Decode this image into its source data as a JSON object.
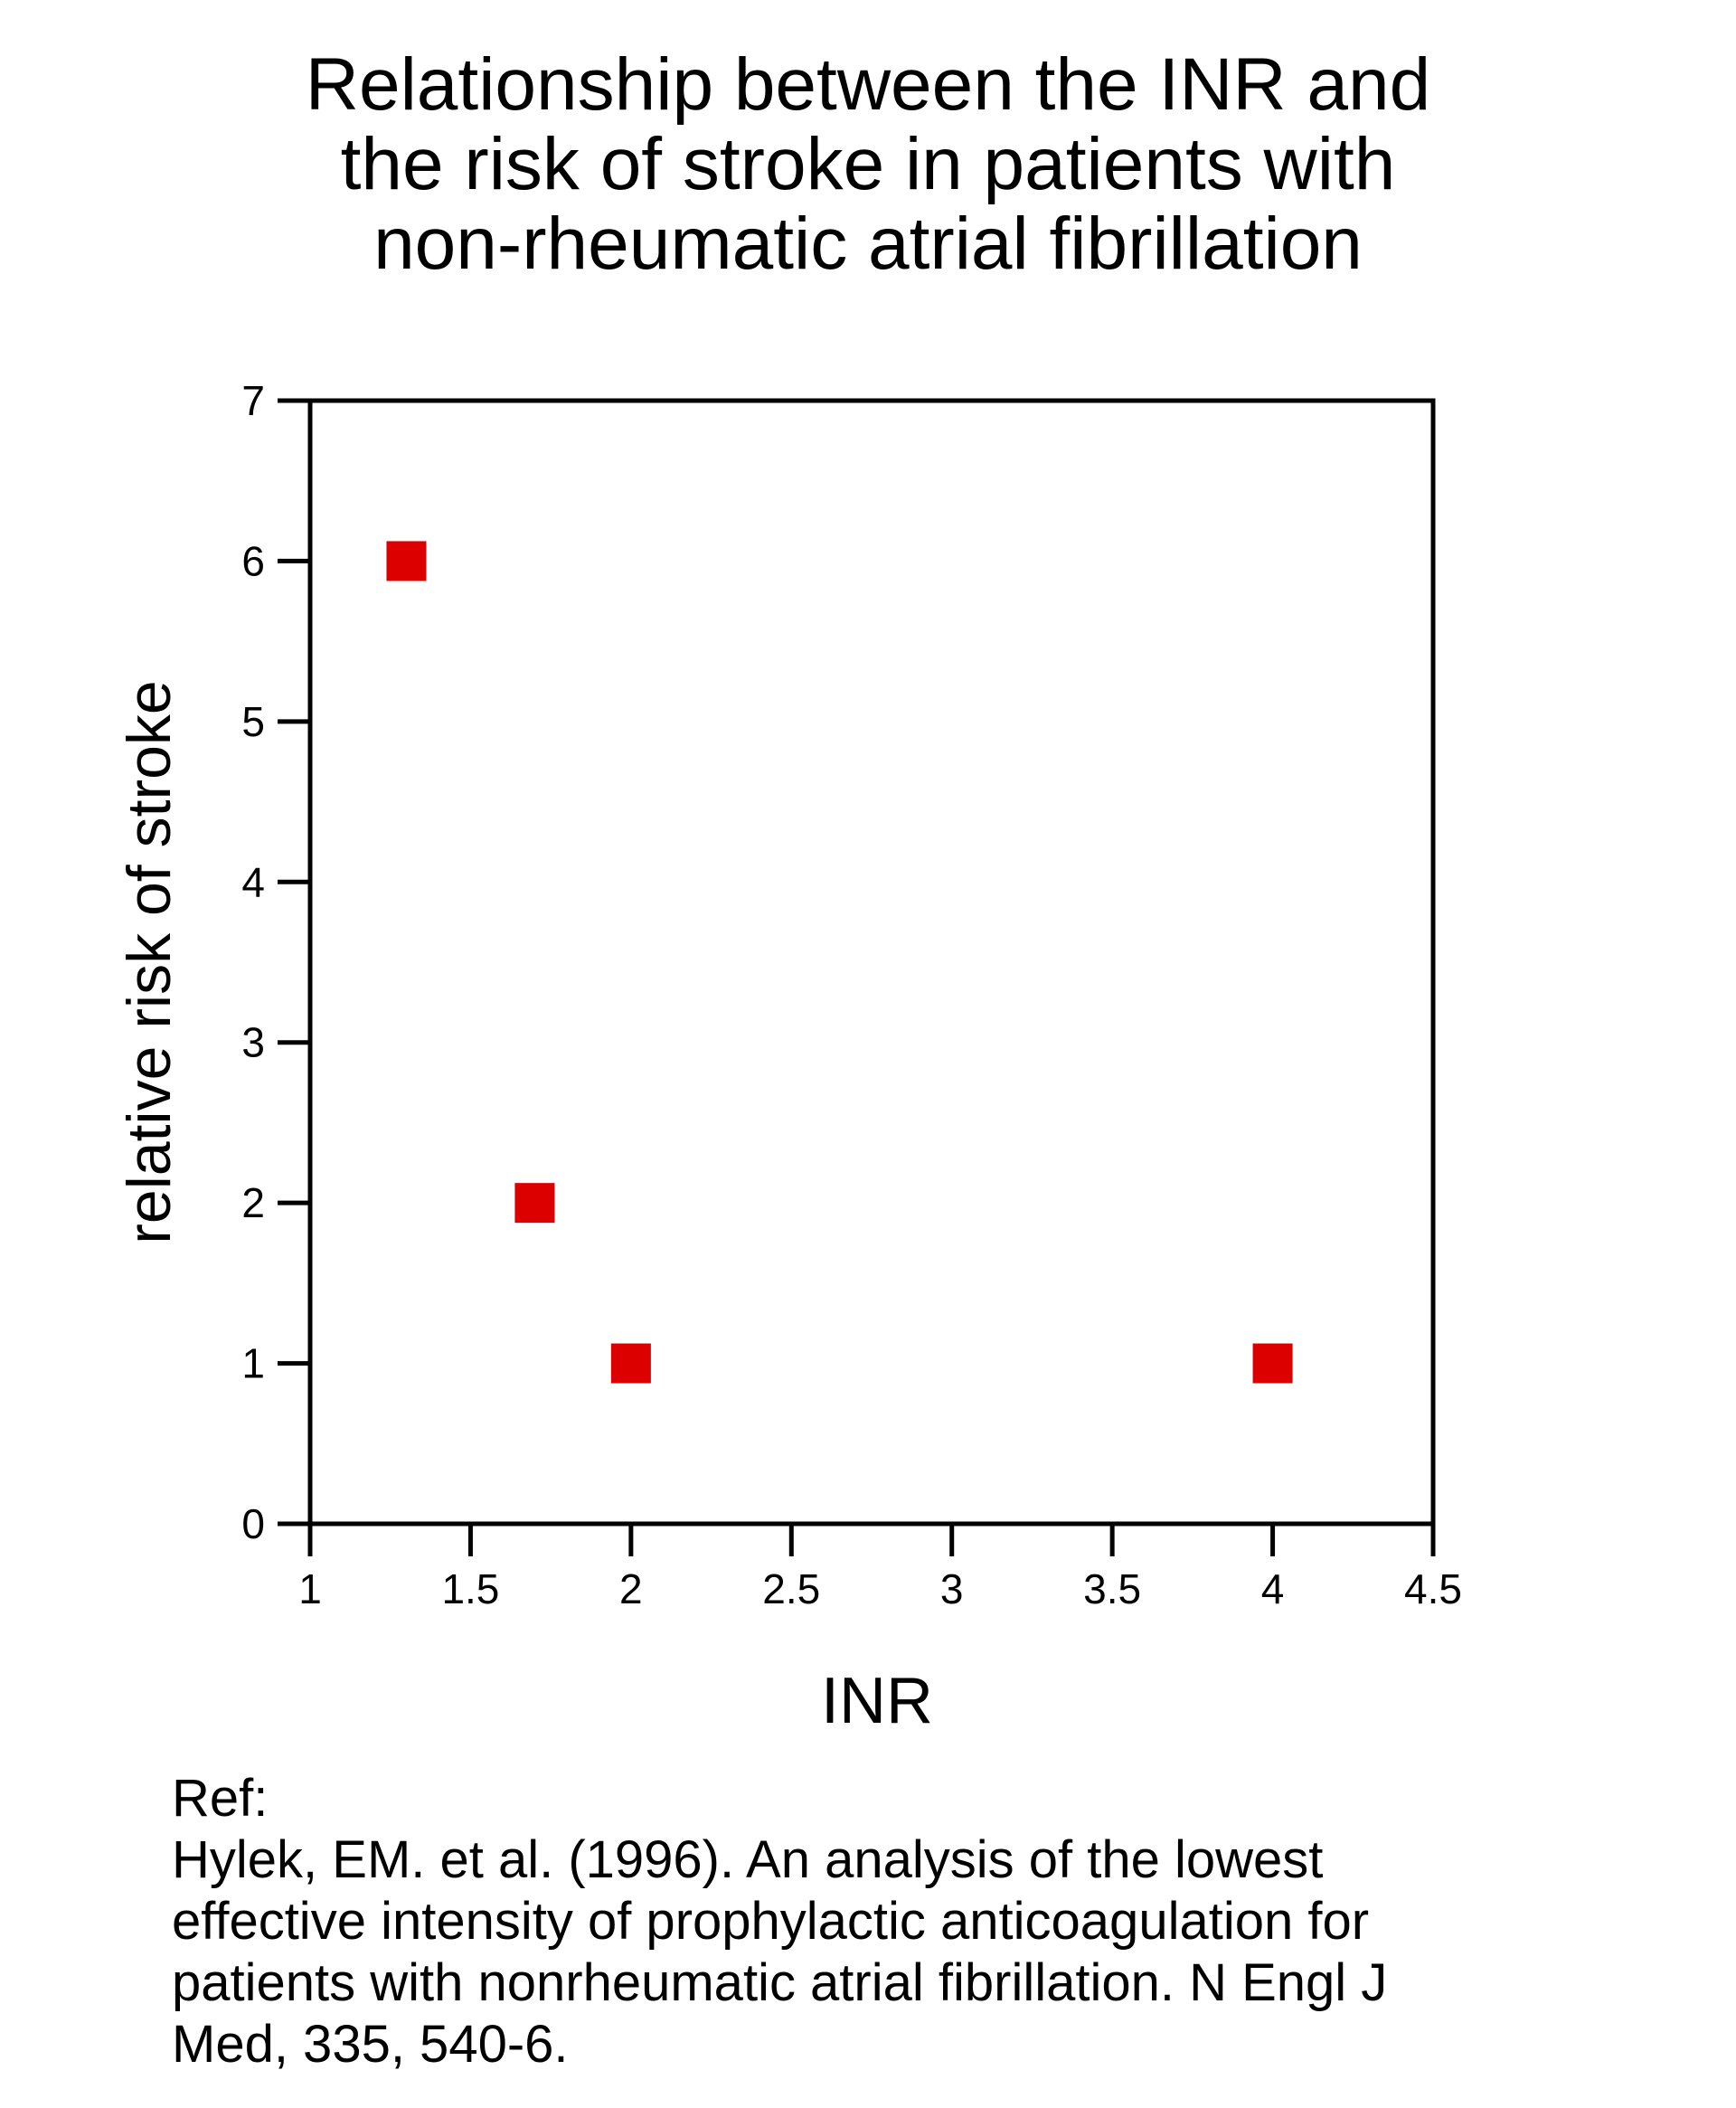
{
  "chart_data": {
    "type": "scatter",
    "title_lines": [
      "Relationship between the INR and",
      "the risk of stroke in patients with",
      "non-rheumatic atrial fibrillation"
    ],
    "xlabel": "INR",
    "ylabel": "relative risk of stroke",
    "xlim": [
      1,
      4.5
    ],
    "ylim": [
      0,
      7
    ],
    "x_ticks": [
      1,
      1.5,
      2,
      2.5,
      3,
      3.5,
      4,
      4.5
    ],
    "x_tick_labels": [
      "1",
      "1.5",
      "2",
      "2.5",
      "3",
      "3.5",
      "4",
      "4.5"
    ],
    "y_ticks": [
      0,
      1,
      2,
      3,
      4,
      5,
      6,
      7
    ],
    "y_tick_labels": [
      "0",
      "1",
      "2",
      "3",
      "4",
      "5",
      "6",
      "7"
    ],
    "grid": false,
    "marker_color": "#dd0000",
    "series": [
      {
        "name": "relative risk",
        "x": [
          1.3,
          1.7,
          2.0,
          4.0
        ],
        "y": [
          6,
          2,
          1,
          1
        ]
      }
    ]
  },
  "reference": {
    "label": "Ref:",
    "lines": [
      "Hylek, EM. et al. (1996). An analysis of the lowest",
      "effective intensity of prophylactic anticoagulation for",
      "patients with nonrheumatic atrial fibrillation.   N Engl J",
      "Med, 335, 540-6."
    ]
  }
}
